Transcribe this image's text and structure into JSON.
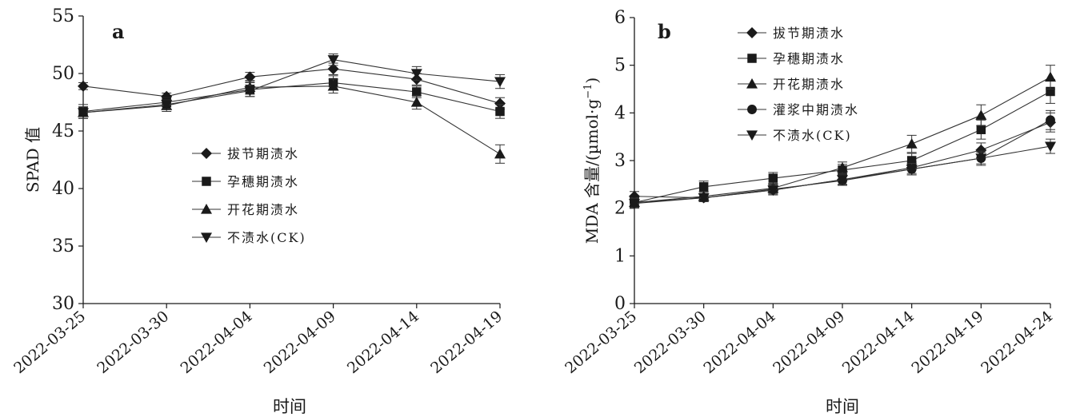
{
  "chart_data": [
    {
      "type": "line",
      "panel_label": "a",
      "xlabel": "时间",
      "ylabel": "SPAD 值",
      "ylim": [
        30,
        55
      ],
      "yticks": [
        30,
        35,
        40,
        45,
        50,
        55
      ],
      "categories": [
        "2022-03-25",
        "2022-03-30",
        "2022-04-04",
        "2022-04-09",
        "2022-04-14",
        "2022-04-19"
      ],
      "legend_position": "center",
      "series": [
        {
          "name": "拔节期渍水",
          "marker": "diamond",
          "values": [
            48.9,
            48.0,
            49.7,
            50.4,
            49.5,
            47.4
          ],
          "errors": [
            0.3,
            0.3,
            0.4,
            0.5,
            0.5,
            0.5
          ]
        },
        {
          "name": "孕穗期渍水",
          "marker": "square",
          "values": [
            46.7,
            47.5,
            48.6,
            49.2,
            48.4,
            46.7
          ],
          "errors": [
            0.6,
            0.4,
            0.6,
            0.6,
            0.5,
            0.6
          ]
        },
        {
          "name": "开花期渍水",
          "marker": "triangle-up",
          "values": [
            46.6,
            47.2,
            48.8,
            48.9,
            47.5,
            43.0
          ],
          "errors": [
            0.5,
            0.5,
            0.6,
            0.6,
            0.6,
            0.8
          ]
        },
        {
          "name": "不渍水(CK)",
          "marker": "triangle-down",
          "values": [
            46.6,
            47.3,
            48.5,
            51.2,
            50.0,
            49.3
          ],
          "errors": [
            0.5,
            0.4,
            0.5,
            0.5,
            0.6,
            0.6
          ]
        }
      ]
    },
    {
      "type": "line",
      "panel_label": "b",
      "xlabel": "时间",
      "ylabel": "MDA 含量/(µmol·g",
      "ylabel_sup": "−1",
      "ylabel_end": ")",
      "ylim": [
        0,
        6
      ],
      "yticks": [
        0,
        1,
        2,
        3,
        4,
        5,
        6
      ],
      "categories": [
        "2022-03-25",
        "2022-03-30",
        "2022-04-04",
        "2022-04-09",
        "2022-04-14",
        "2022-04-19",
        "2022-04-24"
      ],
      "legend_position": "top-left",
      "series": [
        {
          "name": "拔节期渍水",
          "marker": "diamond",
          "values": [
            2.25,
            2.22,
            2.38,
            2.6,
            2.85,
            3.22,
            3.8
          ],
          "errors": [
            0.1,
            0.08,
            0.1,
            0.1,
            0.12,
            0.15,
            0.2
          ]
        },
        {
          "name": "孕穗期渍水",
          "marker": "square",
          "values": [
            2.12,
            2.45,
            2.63,
            2.8,
            3.0,
            3.65,
            4.45
          ],
          "errors": [
            0.1,
            0.12,
            0.12,
            0.12,
            0.15,
            0.2,
            0.25
          ]
        },
        {
          "name": "开花期渍水",
          "marker": "triangle-up",
          "values": [
            2.12,
            2.25,
            2.42,
            2.85,
            3.35,
            3.95,
            4.75
          ],
          "errors": [
            0.1,
            0.1,
            0.1,
            0.12,
            0.18,
            0.22,
            0.25
          ]
        },
        {
          "name": "灌浆中期渍水",
          "marker": "circle",
          "values": [
            2.12,
            2.22,
            2.4,
            2.58,
            2.82,
            3.05,
            3.85
          ],
          "errors": [
            0.1,
            0.08,
            0.1,
            0.1,
            0.12,
            0.15,
            0.2
          ]
        },
        {
          "name": "不渍水(CK)",
          "marker": "triangle-down",
          "values": [
            2.1,
            2.22,
            2.38,
            2.6,
            2.82,
            3.05,
            3.3
          ],
          "errors": [
            0.1,
            0.08,
            0.1,
            0.1,
            0.12,
            0.12,
            0.15
          ]
        }
      ]
    }
  ]
}
